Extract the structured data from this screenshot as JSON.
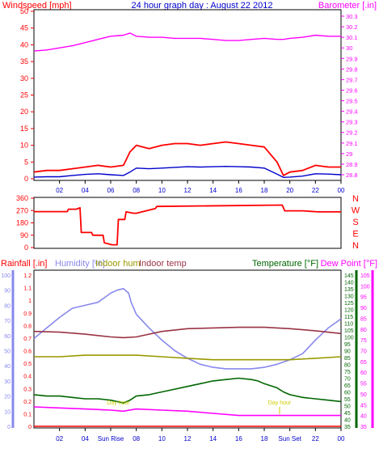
{
  "chart_data": [
    {
      "panel": "wind-barometer",
      "type": "line",
      "title": "24 hour graph day : August 22 2012",
      "left_axis_label": "Windspeed [mph]",
      "right_axis_label": "Barometer [.in]",
      "x_tick_labels": [
        "02",
        "04",
        "06",
        "08",
        "10",
        "12",
        "14",
        "16",
        "18",
        "20",
        "22",
        "00"
      ],
      "left_ticks": [
        "50",
        "45",
        "40",
        "35",
        "30",
        "25",
        "20",
        "15",
        "10",
        "5",
        "0"
      ],
      "right_ticks": [
        "30.3",
        "30.2",
        "30.1",
        "30",
        "29.9",
        "29.8",
        "29.7",
        "29.6",
        "29.5",
        "29.4",
        "29.3",
        "29.2",
        "29.1",
        "29",
        "28.9",
        "28.8"
      ],
      "ylim_left": [
        0,
        50
      ],
      "ylim_right": [
        28.75,
        30.35
      ],
      "x_hours": [
        0,
        1,
        2,
        3,
        4,
        5,
        6,
        7,
        7.5,
        8,
        9,
        10,
        11,
        12,
        13,
        14,
        15,
        16,
        17,
        18,
        19,
        19.5,
        20,
        21,
        22,
        23,
        24
      ],
      "series": [
        {
          "axis": "right",
          "color": "#ff00ff",
          "values": [
            29.97,
            29.98,
            30.0,
            30.02,
            30.05,
            30.08,
            30.11,
            30.12,
            30.14,
            30.11,
            30.1,
            30.1,
            30.09,
            30.09,
            30.09,
            30.08,
            30.07,
            30.07,
            30.08,
            30.09,
            30.08,
            30.08,
            30.09,
            30.1,
            30.12,
            30.11,
            30.11
          ]
        },
        {
          "axis": "left",
          "color": "#ff0000",
          "values": [
            2,
            2.5,
            2.5,
            3,
            3.5,
            4,
            3.5,
            4,
            8,
            10,
            9,
            10,
            10.5,
            10.5,
            10,
            10.5,
            11,
            10.5,
            10,
            9.5,
            5,
            1,
            2,
            2.5,
            4,
            3.5,
            3.5
          ]
        },
        {
          "axis": "left",
          "color": "#0000cc",
          "values": [
            0.5,
            0.6,
            0.6,
            1,
            1.3,
            1.5,
            1.2,
            1,
            2,
            3.2,
            3,
            3.2,
            3.4,
            3.6,
            3.5,
            3.6,
            3.7,
            3.6,
            3.5,
            3.2,
            1.4,
            0.4,
            0.5,
            0.8,
            1.5,
            1.4,
            1.2
          ]
        }
      ]
    },
    {
      "panel": "wind-direction",
      "type": "line",
      "left_ticks": [
        "360",
        "270",
        "180",
        "90",
        "0"
      ],
      "right_letters": [
        "N",
        "W",
        "S",
        "E",
        "N"
      ],
      "ylim": [
        0,
        360
      ],
      "color": "#ff0000",
      "x_hours": [
        0,
        2.6,
        2.7,
        3.3,
        3.6,
        3.7,
        4.5,
        4.6,
        5.4,
        5.5,
        6.1,
        6.5,
        6.6,
        7.1,
        7.2,
        7.8,
        8.0,
        9.5,
        9.6,
        19.4,
        19.5,
        19.6,
        21,
        22.2,
        24
      ],
      "values": [
        262,
        262,
        280,
        280,
        290,
        110,
        110,
        90,
        90,
        35,
        20,
        20,
        205,
        205,
        260,
        250,
        250,
        285,
        300,
        310,
        290,
        268,
        268,
        260,
        260
      ]
    },
    {
      "panel": "weather-lower",
      "type": "line",
      "labels": {
        "rainfall": "Rainfall [.in]",
        "humidity": "Humidity [%]",
        "indoor_hum": "Indoor hum",
        "indoor_temp": "Indoor temp",
        "temperature": "Temperature [°F]",
        "dew_point": "Dew Point [°F]"
      },
      "x_tick_labels": [
        "02",
        "04",
        "Sun Rise",
        "08",
        "10",
        "12",
        "14",
        "16",
        "18",
        "Sun Set",
        "22",
        "00"
      ],
      "rain_ticks": [
        "1.2",
        "1.1",
        "1",
        "0.9",
        "0.8",
        "0.7",
        "0.6",
        "0.5",
        "0.4",
        "0.3",
        "0.2",
        "0.1",
        "0"
      ],
      "humidity_ticks": [
        "100",
        "90",
        "80",
        "70",
        "60",
        "50",
        "40",
        "30",
        "20",
        "10",
        "0"
      ],
      "temp_ticks": [
        "145",
        "140",
        "135",
        "130",
        "125",
        "120",
        "115",
        "110",
        "105",
        "100",
        "95",
        "90",
        "85",
        "80",
        "75",
        "70",
        "65",
        "60",
        "55",
        "50",
        "45",
        "40",
        "35"
      ],
      "dew_ticks": [
        "105",
        "100",
        "95",
        "90",
        "85",
        "80",
        "75",
        "70",
        "65",
        "60",
        "55",
        "50",
        "45",
        "40",
        "35"
      ],
      "annotations": [
        "Day hour",
        "Day hour"
      ],
      "series": [
        {
          "name": "Humidity [%]",
          "color": "#8888ee",
          "axis": "humidity",
          "x_hours": [
            0,
            1,
            2,
            3,
            4,
            5,
            6,
            6.5,
            7,
            7.4,
            7.6,
            8,
            9,
            10,
            11,
            12,
            13,
            14,
            15,
            16,
            17,
            18,
            19,
            20,
            21,
            22,
            23,
            24
          ],
          "values": [
            58,
            65,
            72,
            78,
            80,
            82,
            88,
            90,
            91,
            88,
            82,
            74,
            65,
            57,
            50,
            45,
            41,
            39,
            38,
            38,
            38,
            39,
            41,
            44,
            48,
            57,
            65,
            71
          ]
        },
        {
          "name": "Indoor hum",
          "color": "#999900",
          "axis": "humidity",
          "x_hours": [
            0,
            2,
            4,
            6,
            8,
            10,
            12,
            14,
            16,
            18,
            20,
            22,
            24
          ],
          "values": [
            46,
            46,
            47,
            47,
            47,
            46,
            45,
            44,
            44,
            44,
            44,
            45,
            46
          ]
        },
        {
          "name": "Indoor temp",
          "color": "#993344",
          "axis": "temp",
          "x_hours": [
            0,
            2,
            4,
            6,
            7,
            8,
            10,
            12,
            14,
            16,
            18,
            20,
            22,
            24
          ],
          "values": [
            104,
            103.5,
            102,
            100,
            99.5,
            100,
            104,
            106,
            106.5,
            107,
            107,
            106,
            104.5,
            102.5
          ]
        },
        {
          "name": "Temperature [°F]",
          "color": "#006600",
          "axis": "temp",
          "x_hours": [
            0,
            1,
            2,
            3,
            4,
            5,
            6,
            7,
            7.5,
            8,
            9,
            10,
            11,
            12,
            13,
            14,
            15,
            16,
            17,
            17.5,
            18,
            19,
            19.5,
            20,
            21,
            22,
            23,
            24
          ],
          "values": [
            58,
            57,
            57,
            56,
            55,
            55,
            54,
            52,
            54,
            57,
            58,
            60,
            62,
            64,
            66,
            68,
            69,
            70,
            69,
            68,
            66,
            63,
            60,
            58,
            56,
            55,
            54,
            53
          ]
        },
        {
          "name": "Dew Point [°F]",
          "color": "#ff00ff",
          "axis": "dew",
          "x_hours": [
            0,
            2,
            4,
            6,
            7,
            8,
            10,
            12,
            14,
            16,
            18,
            20,
            22,
            24
          ],
          "values": [
            44,
            43.5,
            43,
            42.5,
            42,
            43,
            42.5,
            42,
            41,
            40,
            40,
            40,
            40,
            40
          ]
        },
        {
          "name": "Rainfall [.in]",
          "color": "#ff0000",
          "axis": "rain",
          "x_hours": [
            0,
            24
          ],
          "values": [
            0,
            0
          ]
        }
      ]
    }
  ]
}
